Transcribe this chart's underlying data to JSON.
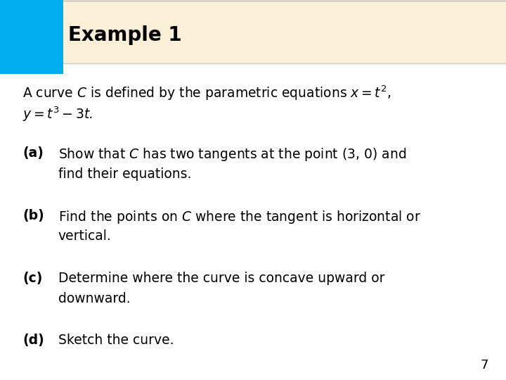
{
  "title": "Example 1",
  "title_color": "#000000",
  "slide_bg_color": "#FAF0D7",
  "title_box_color": "#00AEEF",
  "body_bg_color": "#FFFFFF",
  "page_number": "7",
  "intro_line1": "A curve $C$ is defined by the parametric equations $x = t^2$,",
  "intro_line2": "$y = t^3 - 3t$.",
  "part_a_label": "(a)",
  "part_a_line1": "Show that $C$ has two tangents at the point (3, 0) and",
  "part_a_line2": "find their equations.",
  "part_b_label": "(b)",
  "part_b_line1": "Find the points on $C$ where the tangent is horizontal or",
  "part_b_line2": "vertical.",
  "part_c_label": "(c)",
  "part_c_line1": "Determine where the curve is concave upward or",
  "part_c_line2": "downward.",
  "part_d_label": "(d)",
  "part_d_line1": "Sketch the curve.",
  "font_size_title": 20,
  "font_size_body": 13.5,
  "font_size_page": 13
}
